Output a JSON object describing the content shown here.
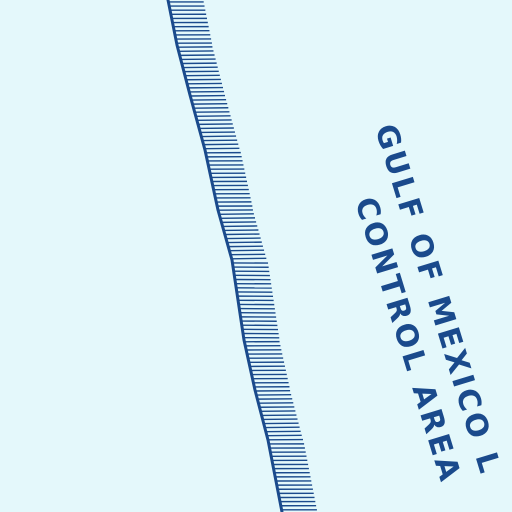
{
  "map": {
    "background_color": "#e4f8fb",
    "ink_color": "#1a4a8c",
    "boundary_feature": "special-use-airspace-boundary-hatched",
    "labels": {
      "line1": "GULF OF MEXICO L",
      "line2": "CONTROL AREA"
    }
  }
}
